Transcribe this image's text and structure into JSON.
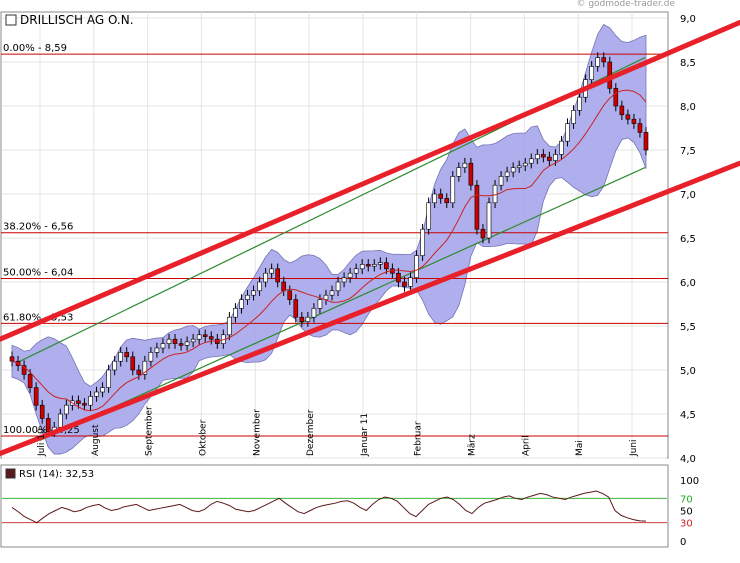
{
  "watermark": "© godmode-trader.de",
  "chart_data": [
    {
      "type": "candlestick",
      "title": "DRILLISCH AG O.N.",
      "ylim": [
        4.0,
        9.0
      ],
      "yticks": [
        "4,0",
        "4,5",
        "5,0",
        "5,5",
        "6,0",
        "6,5",
        "7,0",
        "7,5",
        "8,0",
        "8,5",
        "9,0"
      ],
      "x_labels": [
        "Juli 10",
        "August",
        "September",
        "Oktober",
        "November",
        "Dezember",
        "Januar 11",
        "Februar",
        "März",
        "April",
        "Mai",
        "Juni"
      ],
      "fib_levels": [
        {
          "label": "0.00% - 8,59",
          "value": 8.59
        },
        {
          "label": "38.20% - 6,56",
          "value": 6.56
        },
        {
          "label": "50.00% - 6,04",
          "value": 6.04
        },
        {
          "label": "61.80% - 5,53",
          "value": 5.53
        },
        {
          "label": "100.00% - 4,25",
          "value": 4.25
        }
      ],
      "trend_channel": {
        "color": "#e8202a",
        "upper": [
          [
            0,
            5.35
          ],
          [
            740,
            8.95
          ]
        ],
        "lower": [
          [
            0,
            4.05
          ],
          [
            740,
            7.35
          ]
        ]
      },
      "inner_channel": {
        "color": "#2e8b2e",
        "upper": [
          [
            20,
            5.1
          ],
          [
            645,
            8.55
          ]
        ],
        "lower": [
          [
            40,
            4.2
          ],
          [
            645,
            7.3
          ]
        ]
      },
      "closes": [
        5.1,
        5.05,
        4.95,
        4.8,
        4.6,
        4.45,
        4.3,
        4.35,
        4.5,
        4.6,
        4.65,
        4.62,
        4.6,
        4.7,
        4.75,
        4.8,
        5.0,
        5.1,
        5.2,
        5.15,
        5.0,
        4.95,
        5.1,
        5.2,
        5.25,
        5.3,
        5.35,
        5.3,
        5.28,
        5.32,
        5.35,
        5.4,
        5.38,
        5.35,
        5.3,
        5.4,
        5.6,
        5.7,
        5.8,
        5.85,
        5.9,
        6.0,
        6.1,
        6.15,
        6.0,
        5.9,
        5.8,
        5.6,
        5.55,
        5.6,
        5.7,
        5.8,
        5.85,
        5.9,
        6.0,
        6.05,
        6.1,
        6.15,
        6.2,
        6.18,
        6.2,
        6.22,
        6.15,
        6.1,
        6.0,
        5.95,
        6.05,
        6.3,
        6.6,
        6.9,
        7.0,
        6.95,
        6.9,
        7.2,
        7.3,
        7.35,
        7.1,
        6.6,
        6.5,
        6.9,
        7.1,
        7.2,
        7.25,
        7.3,
        7.32,
        7.35,
        7.4,
        7.45,
        7.42,
        7.38,
        7.45,
        7.6,
        7.8,
        7.95,
        8.1,
        8.3,
        8.45,
        8.55,
        8.5,
        8.2,
        8.0,
        7.9,
        7.85,
        7.8,
        7.7,
        7.5
      ],
      "bands_upper_note": "Bollinger band",
      "moving_average_color": "#cc2222"
    },
    {
      "type": "line",
      "title": "RSI (14): 32,53",
      "ylim": [
        0,
        100
      ],
      "yticks": [
        "0",
        "30",
        "50",
        "70",
        "100"
      ],
      "levels": [
        30,
        70
      ],
      "values": [
        55,
        48,
        40,
        35,
        30,
        38,
        45,
        50,
        55,
        52,
        48,
        50,
        55,
        58,
        60,
        54,
        50,
        52,
        56,
        58,
        60,
        55,
        50,
        52,
        54,
        56,
        58,
        60,
        55,
        50,
        48,
        52,
        60,
        65,
        62,
        58,
        52,
        50,
        48,
        50,
        55,
        60,
        65,
        70,
        62,
        55,
        48,
        45,
        50,
        55,
        58,
        60,
        62,
        65,
        66,
        62,
        55,
        50,
        60,
        68,
        72,
        70,
        65,
        55,
        45,
        40,
        50,
        60,
        65,
        70,
        72,
        68,
        60,
        50,
        45,
        55,
        62,
        65,
        68,
        72,
        74,
        70,
        68,
        72,
        75,
        78,
        76,
        72,
        70,
        68,
        72,
        75,
        78,
        80,
        82,
        78,
        72,
        50,
        42,
        38,
        35,
        33,
        32.53
      ]
    }
  ]
}
